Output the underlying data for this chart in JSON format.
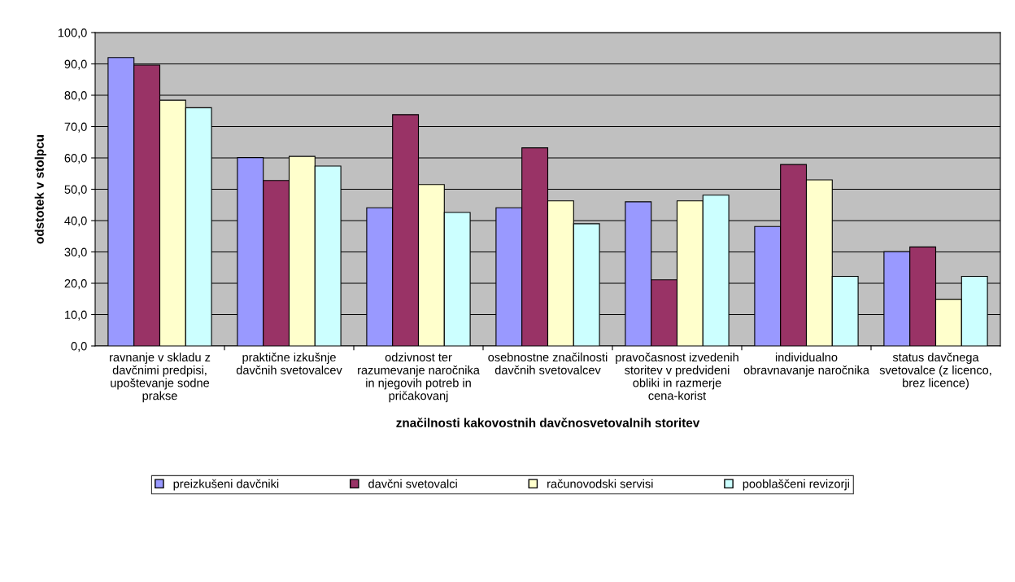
{
  "chart_data": {
    "type": "bar",
    "xlabel": "značilnosti kakovostnih davčnosvetovalnih storitev",
    "ylabel": "odstotek v stolpcu",
    "categories": [
      "ravnanje v skladu z davčnimi predpisi, upoštevanje sodne prakse",
      "praktične izkušnje davčnih svetovalcev",
      "odzivnost ter razumevanje naročnika in njegovih potreb in pričakovanj",
      "osebnostne značilnosti davčnih svetovalcev",
      "pravočasnost izvedenih storitev v predvideni obliki in razmerje cena-korist",
      "individualno obravnavanje naročnika",
      "status davčnega svetovalce (z licenco, brez licence)"
    ],
    "series": [
      {
        "name": "preizkušeni davčniki",
        "color": "#9999ff",
        "values": [
          92.0,
          60.1,
          44.1,
          44.1,
          46.0,
          38.1,
          30.1
        ]
      },
      {
        "name": "davčni svetovalci",
        "color": "#993366",
        "values": [
          89.6,
          52.8,
          73.8,
          63.2,
          21.1,
          57.9,
          31.6
        ]
      },
      {
        "name": "računovodski servisi",
        "color": "#ffffcc",
        "values": [
          78.4,
          60.5,
          51.5,
          46.3,
          46.3,
          53.0,
          14.9
        ]
      },
      {
        "name": "pooblaščeni revizorji",
        "color": "#ccffff",
        "values": [
          76.0,
          57.4,
          42.6,
          39.0,
          48.1,
          22.2,
          22.2
        ]
      }
    ],
    "ylim": [
      0,
      100
    ],
    "yticks": [
      {
        "value": 0,
        "label": "0,0"
      },
      {
        "value": 10,
        "label": "10,0"
      },
      {
        "value": 20,
        "label": "20,0"
      },
      {
        "value": 30,
        "label": "30,0"
      },
      {
        "value": 40,
        "label": "40,0"
      },
      {
        "value": 50,
        "label": "50,0"
      },
      {
        "value": 60,
        "label": "60,0"
      },
      {
        "value": 70,
        "label": "70,0"
      },
      {
        "value": 80,
        "label": "80,0"
      },
      {
        "value": 90,
        "label": "90,0"
      },
      {
        "value": 100,
        "label": "100,0"
      }
    ],
    "grid": "y",
    "legend": "bottom"
  }
}
